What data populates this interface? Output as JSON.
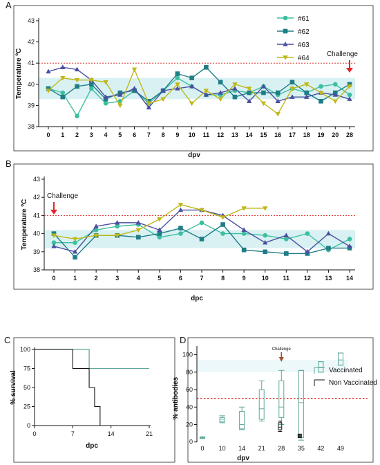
{
  "colors": {
    "s61": "#3cbfa0",
    "s62": "#1f7d86",
    "s63": "#4b4f9f",
    "s64": "#c0b81a",
    "threshold": "#d9302c",
    "challenge_arrow": "#e8222a",
    "vaccinated": "#5fa89a",
    "non_vaccinated": "#111111",
    "band": "#d9f1f3"
  },
  "chart_data": [
    {
      "panel_label": "A",
      "type": "line",
      "xlabel": "dpv",
      "ylabel": "Temperature ºC",
      "ylim": [
        38,
        43
      ],
      "categories": [
        "0",
        "1",
        "2",
        "3",
        "4",
        "5",
        "6",
        "7",
        "8",
        "9",
        "10",
        "11",
        "12",
        "13",
        "14",
        "15",
        "16",
        "17",
        "18",
        "19",
        "20",
        "28"
      ],
      "threshold": 41,
      "annotation": {
        "text": "Challenge",
        "at": "28"
      },
      "legend_position": "top-right",
      "series": [
        {
          "name": "#61",
          "marker": "circle",
          "values": [
            39.8,
            39.6,
            38.5,
            39.8,
            39.1,
            39.2,
            39.7,
            39.1,
            39.7,
            40.3,
            39.9,
            39.5,
            39.5,
            39.7,
            39.6,
            39.9,
            39.5,
            39.8,
            39.6,
            39.9,
            40.0,
            39.5
          ]
        },
        {
          "name": "#62",
          "marker": "square",
          "values": [
            39.8,
            39.4,
            39.9,
            40.0,
            39.3,
            39.6,
            39.7,
            39.2,
            39.7,
            40.5,
            40.3,
            40.8,
            40.1,
            39.4,
            39.6,
            39.6,
            39.6,
            40.1,
            39.6,
            39.2,
            39.6,
            40.0
          ]
        },
        {
          "name": "#63",
          "marker": "triangle",
          "values": [
            40.6,
            40.8,
            40.7,
            40.2,
            39.4,
            39.5,
            39.8,
            38.9,
            39.7,
            39.8,
            39.9,
            39.5,
            39.6,
            39.8,
            39.2,
            39.9,
            39.2,
            39.4,
            39.4,
            39.6,
            39.5,
            39.3
          ]
        },
        {
          "name": "#64",
          "marker": "triangle-down",
          "values": [
            39.7,
            40.3,
            40.2,
            40.2,
            40.1,
            39.0,
            40.7,
            39.1,
            39.3,
            40.0,
            39.1,
            39.7,
            39.3,
            40.0,
            39.8,
            39.1,
            38.6,
            39.8,
            40.0,
            39.6,
            39.2,
            39.9
          ]
        }
      ]
    },
    {
      "panel_label": "B",
      "type": "line",
      "xlabel": "dpc",
      "ylabel": "Temperature ºC",
      "ylim": [
        38,
        43
      ],
      "categories": [
        "0",
        "1",
        "2",
        "3",
        "4",
        "5",
        "6",
        "7",
        "8",
        "9",
        "10",
        "11",
        "12",
        "13",
        "14"
      ],
      "threshold": 41,
      "annotation": {
        "text": "Challenge",
        "at": "0"
      },
      "series": [
        {
          "name": "#61",
          "marker": "circle",
          "values": [
            39.5,
            39.5,
            40.2,
            40.4,
            40.5,
            39.8,
            40.0,
            40.6,
            40.0,
            40.0,
            39.9,
            39.7,
            40.0,
            39.1,
            39.7
          ]
        },
        {
          "name": "#62",
          "marker": "square",
          "values": [
            40.0,
            38.7,
            39.9,
            39.9,
            39.8,
            40.0,
            40.3,
            39.7,
            40.5,
            39.1,
            39.0,
            38.9,
            38.9,
            39.2,
            39.2
          ]
        },
        {
          "name": "#63",
          "marker": "triangle",
          "values": [
            39.3,
            39.0,
            40.4,
            40.6,
            40.6,
            40.2,
            41.3,
            41.3,
            41.0,
            40.2,
            39.5,
            39.9,
            39.0,
            40.0,
            39.3
          ]
        },
        {
          "name": "#64",
          "marker": "triangle-down",
          "values": [
            39.9,
            39.7,
            39.9,
            39.9,
            40.2,
            40.8,
            41.6,
            41.3,
            40.9,
            41.4,
            41.4,
            null,
            null,
            null,
            null
          ]
        }
      ]
    },
    {
      "panel_label": "C",
      "type": "line",
      "xlabel": "dpc",
      "ylabel": "% survival",
      "xticks": [
        0,
        7,
        14,
        21
      ],
      "yticks": [
        0,
        25,
        50,
        75,
        100
      ],
      "xlim": [
        0,
        21
      ],
      "ylim": [
        0,
        100
      ],
      "series": [
        {
          "name": "Vaccinated",
          "steps": [
            [
              0,
              100
            ],
            [
              10,
              100
            ],
            [
              10,
              75
            ],
            [
              21,
              75
            ]
          ]
        },
        {
          "name": "Non Vaccinated",
          "steps": [
            [
              0,
              100
            ],
            [
              7,
              100
            ],
            [
              7,
              75
            ],
            [
              10,
              75
            ],
            [
              10,
              50
            ],
            [
              11,
              50
            ],
            [
              11,
              25
            ],
            [
              12,
              25
            ],
            [
              12,
              0
            ]
          ]
        }
      ]
    },
    {
      "panel_label": "D",
      "type": "box",
      "xlabel": "dpv",
      "ylabel": "% antibodies",
      "categories": [
        "0",
        "10",
        "14",
        "21",
        "28",
        "35",
        "42",
        "49"
      ],
      "yticks": [
        0,
        20,
        40,
        60,
        80,
        100
      ],
      "ylim": [
        -5,
        110
      ],
      "threshold": 50,
      "annotation": {
        "text": "Challenge",
        "at": "28"
      },
      "legend_position": "right",
      "series": [
        {
          "name": "Vaccinated",
          "boxes": [
            {
              "at": "0",
              "min": 4,
              "q1": 4,
              "median": 5,
              "q3": 5,
              "max": 6
            },
            {
              "at": "10",
              "min": 22,
              "q1": 23,
              "median": 26,
              "q3": 28,
              "max": 30
            },
            {
              "at": "14",
              "min": 14,
              "q1": 15,
              "median": 20,
              "q3": 35,
              "max": 40
            },
            {
              "at": "21",
              "min": 24,
              "q1": 26,
              "median": 38,
              "q3": 60,
              "max": 70
            },
            {
              "at": "28",
              "min": 20,
              "q1": 28,
              "median": 40,
              "q3": 70,
              "max": 82
            },
            {
              "at": "35",
              "min": 2,
              "q1": 5,
              "median": 45,
              "q3": 82,
              "max": 82
            },
            {
              "at": "42",
              "min": 80,
              "q1": 80,
              "median": 85,
              "q3": 92,
              "max": 92
            },
            {
              "at": "49",
              "min": 88,
              "q1": 88,
              "median": 94,
              "q3": 102,
              "max": 102
            }
          ]
        },
        {
          "name": "Non Vaccinated",
          "boxes": [
            {
              "at": "28",
              "min": 12,
              "q1": 14,
              "median": 17,
              "q3": 22,
              "max": 24
            },
            {
              "at": "35",
              "min": 5,
              "q1": 6,
              "median": 7,
              "q3": 8,
              "max": 9
            }
          ]
        }
      ]
    }
  ]
}
